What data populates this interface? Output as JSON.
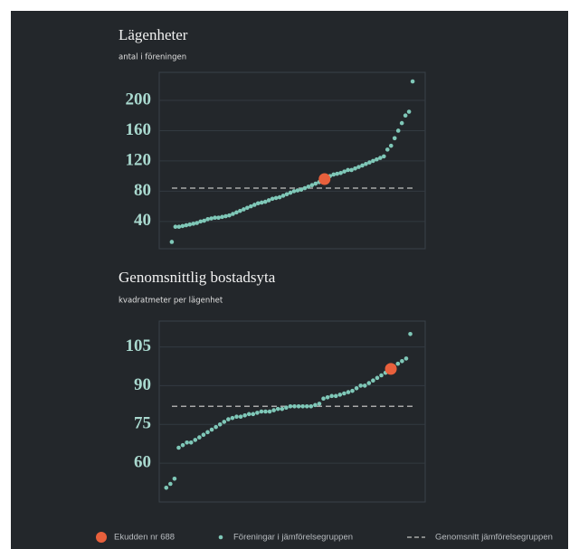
{
  "chart_data": [
    {
      "type": "scatter",
      "title": "Lägenheter",
      "subtitle": "antal i föreningen",
      "ylim": [
        4,
        237
      ],
      "yticks": [
        40,
        80,
        120,
        160,
        200
      ],
      "xlim": [
        -2.5,
        71.5
      ],
      "grid": true,
      "series": [
        {
          "name": "Föreningar i jämförelsegruppen",
          "color": "#7fc8b8",
          "x": [
            1,
            2,
            3,
            4,
            5,
            6,
            7,
            8,
            9,
            10,
            11,
            12,
            13,
            14,
            15,
            16,
            17,
            18,
            19,
            20,
            21,
            22,
            23,
            24,
            25,
            26,
            27,
            28,
            29,
            30,
            31,
            32,
            33,
            34,
            35,
            36,
            37,
            38,
            39,
            40,
            41,
            42,
            43,
            44,
            45,
            46,
            47,
            48,
            49,
            50,
            51,
            52,
            53,
            54,
            55,
            56,
            57,
            58,
            59,
            60,
            61,
            62,
            63,
            64,
            65,
            66,
            67,
            68
          ],
          "values": [
            13,
            33,
            33,
            34,
            35,
            36,
            37,
            38,
            40,
            41,
            43,
            44,
            45,
            45,
            46,
            47,
            48,
            50,
            52,
            54,
            56,
            58,
            60,
            62,
            64,
            65,
            66,
            68,
            70,
            71,
            72,
            74,
            76,
            78,
            80,
            81,
            82,
            84,
            86,
            88,
            90,
            92,
            94,
            98,
            100,
            102,
            103,
            104,
            106,
            108,
            108,
            110,
            112,
            114,
            116,
            118,
            120,
            122,
            124,
            126,
            135,
            140,
            150,
            160,
            170,
            180,
            185,
            225
          ]
        },
        {
          "name": "Ekudden nr 688",
          "color": "#e8603c",
          "x": [
            43.5
          ],
          "values": [
            96
          ]
        }
      ],
      "mean": {
        "name": "Genomsnitt jämförelsegruppen",
        "value": 84,
        "color": "#a8a8a8"
      }
    },
    {
      "type": "scatter",
      "title": "Genomsnittlig bostadsyta",
      "subtitle": "kvadratmeter per lägenhet",
      "ylim": [
        45,
        115
      ],
      "yticks": [
        60,
        75,
        90,
        105
      ],
      "xlim": [
        -0.7,
        63.6
      ],
      "grid": true,
      "series": [
        {
          "color": "#7fc8b8",
          "x": [
            1,
            2,
            3,
            4,
            5,
            6,
            7,
            8,
            9,
            10,
            11,
            12,
            13,
            14,
            15,
            16,
            17,
            18,
            19,
            20,
            21,
            22,
            23,
            24,
            25,
            26,
            27,
            28,
            29,
            30,
            31,
            32,
            33,
            34,
            35,
            36,
            37,
            38,
            39,
            40,
            41,
            42,
            43,
            44,
            45,
            46,
            47,
            48,
            49,
            50,
            51,
            52,
            53,
            54,
            55,
            56,
            57,
            58,
            59,
            60
          ],
          "values": [
            50.5,
            52,
            54,
            66,
            67,
            68,
            68,
            69,
            70,
            71,
            72,
            73,
            74,
            75,
            76,
            77,
            77.5,
            78,
            78,
            78.5,
            79,
            79,
            79.5,
            80,
            80,
            80,
            80.5,
            81,
            81,
            81.5,
            82,
            82,
            82,
            82,
            82,
            82,
            82.5,
            83,
            85,
            85.5,
            86,
            86,
            86.5,
            87,
            87.5,
            88,
            89,
            90,
            90,
            91,
            92,
            93,
            94,
            95,
            96,
            97.5,
            98.5,
            99.5,
            100.5,
            110
          ]
        },
        {
          "color": "#e8603c",
          "x": [
            55.3
          ],
          "values": [
            96.5
          ]
        }
      ],
      "mean": {
        "value": 82,
        "color": "#a8a8a8"
      }
    }
  ]
}
